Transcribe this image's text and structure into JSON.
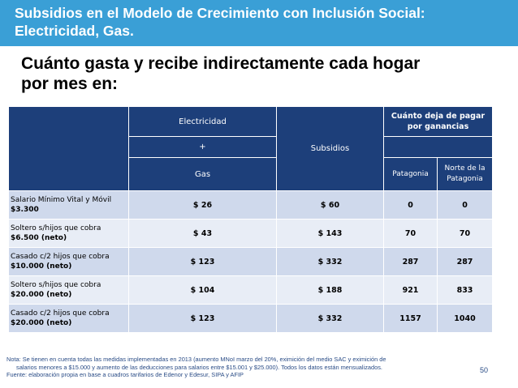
{
  "header": {
    "title_line1": "Subsidios en el Modelo de Crecimiento con Inclusión Social:",
    "title_line2": "Electricidad, Gas."
  },
  "subtitle": {
    "line1": "Cuánto gasta y recibe indirectamente cada hogar",
    "line2": "por mes en:"
  },
  "table": {
    "col_electricidad": "Electricidad",
    "col_plus": "+",
    "col_gas": "Gas",
    "col_subsidios": "Subsidios",
    "col_ganancias": "Cuánto deja de pagar por ganancias",
    "col_patagonia": "Patagonia",
    "col_norte": "Norte de la Patagonia",
    "rows": [
      {
        "label1": "Salario Mínimo Vital y Móvil",
        "label2": "$3.300",
        "gasto": "$ 26",
        "subsidios": "$ 60",
        "patagonia": "0",
        "norte": "0"
      },
      {
        "label1": " Soltero s/hijos que cobra",
        "label2": "$6.500  (neto)",
        "gasto": "$ 43",
        "subsidios": "$ 143",
        "patagonia": "70",
        "norte": "70"
      },
      {
        "label1": "Casado c/2 hijos que cobra",
        "label2": "$10.000  (neto)",
        "gasto": "$ 123",
        "subsidios": "$ 332",
        "patagonia": "287",
        "norte": "287"
      },
      {
        "label1": " Soltero s/hijos que cobra",
        "label2": "$20.000 (neto)",
        "gasto": "$ 104",
        "subsidios": "$ 188",
        "patagonia": "921",
        "norte": "833"
      },
      {
        "label1": " Casado c/2 hijos que cobra",
        "label2": "$20.000 (neto)",
        "gasto": "$ 123",
        "subsidios": "$ 332",
        "patagonia": "1157",
        "norte": "1040"
      }
    ]
  },
  "footnote": {
    "line1": "Nota: Se tienen en cuenta todas las medidas implementadas en 2013 (aumento MNoI marzo del 20%, eximición del medio SAC y eximición de",
    "line2": "salarios menores a $15.000 y aumento de las deducciones para salarios entre $15.001 y $25.000). Todos los datos están mensualizados.",
    "line3": "Fuente: elaboración propia en base a cuadros tarifarios de Edenor y Edesur, SIPA y AFIP"
  },
  "page_number": "50"
}
